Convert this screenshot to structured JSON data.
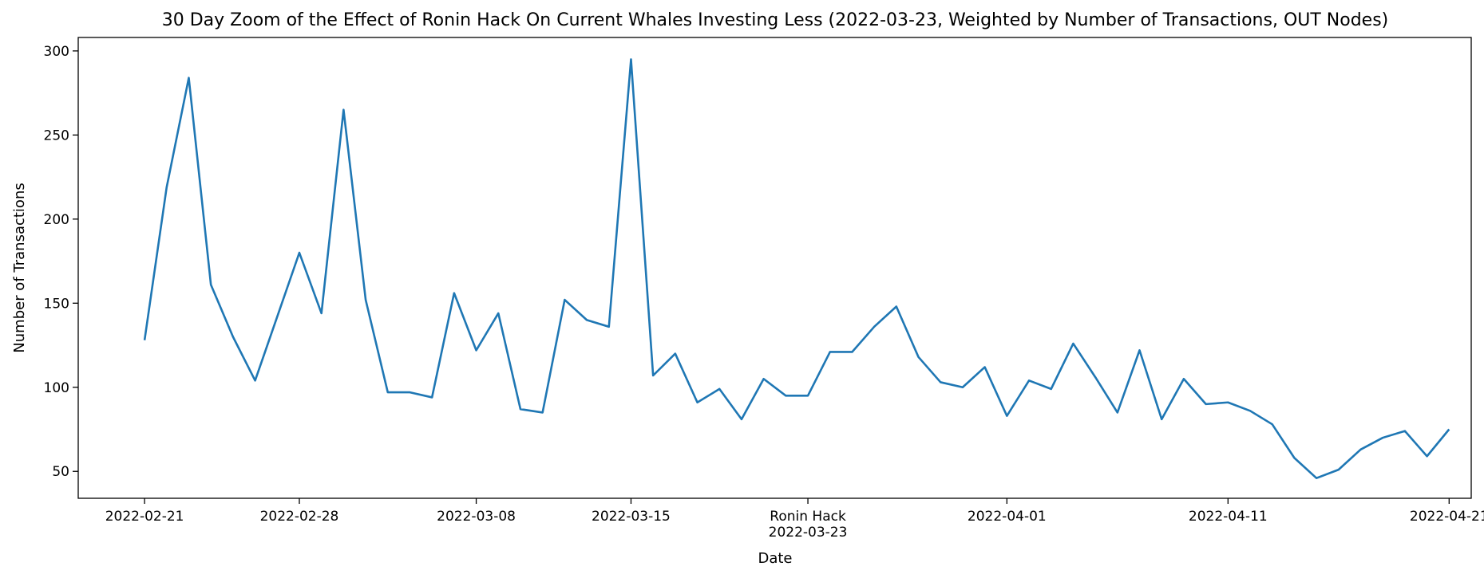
{
  "chart_data": {
    "type": "line",
    "title": "30 Day Zoom of the Effect of Ronin Hack On Current Whales Investing Less (2022-03-23, Weighted by Number of Transactions, OUT Nodes)",
    "xlabel": "Date",
    "ylabel": "Number of Transactions",
    "x_start": "2022-02-21",
    "x_end": "2022-04-21",
    "xlim": [
      "2022-02-18",
      "2022-04-22"
    ],
    "ylim": [
      34,
      308
    ],
    "yticks": [
      50,
      100,
      150,
      200,
      250,
      300
    ],
    "xticks": [
      {
        "date": "2022-02-21",
        "label": "2022-02-21"
      },
      {
        "date": "2022-02-28",
        "label": "2022-02-28"
      },
      {
        "date": "2022-03-08",
        "label": "2022-03-08"
      },
      {
        "date": "2022-03-15",
        "label": "2022-03-15"
      },
      {
        "date": "2022-03-23",
        "label": "Ronin Hack",
        "label2": "2022-03-23"
      },
      {
        "date": "2022-04-01",
        "label": "2022-04-01"
      },
      {
        "date": "2022-04-11",
        "label": "2022-04-11"
      },
      {
        "date": "2022-04-21",
        "label": "2022-04-21"
      }
    ],
    "grid": false,
    "color": "#1f77b4",
    "series": [
      {
        "values": [
          128,
          219,
          284,
          161,
          130,
          104,
          142,
          180,
          144,
          265,
          152,
          97,
          97,
          94,
          156,
          122,
          144,
          87,
          85,
          152,
          140,
          136,
          295,
          107,
          120,
          91,
          99,
          81,
          105,
          95,
          95,
          121,
          121,
          136,
          148,
          118,
          103,
          100,
          112,
          83,
          104,
          99,
          126,
          106,
          85,
          122,
          81,
          105,
          90,
          91,
          86,
          78,
          58,
          46,
          51,
          63,
          70,
          74,
          59,
          75
        ]
      }
    ]
  }
}
